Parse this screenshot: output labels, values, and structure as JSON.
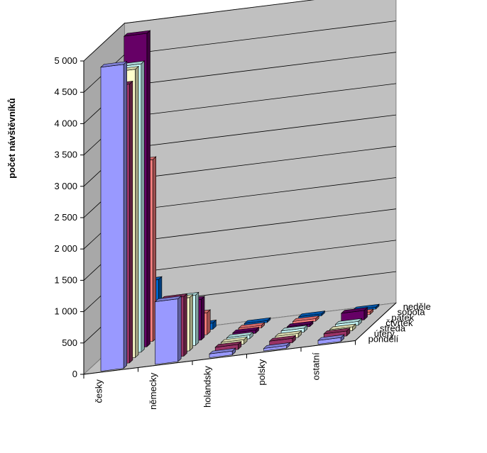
{
  "chart_data": {
    "type": "bar",
    "title": "",
    "ylabel": "počet návštěvníků",
    "ylim": [
      0,
      5000
    ],
    "yticks": [
      "0",
      "500",
      "1 000",
      "1 500",
      "2 000",
      "2 500",
      "3 000",
      "3 500",
      "4 000",
      "4 500",
      "5 000"
    ],
    "categories": [
      "česky",
      "německy",
      "holandsky",
      "polsky",
      "ostatní"
    ],
    "series": [
      {
        "name": "pondělí",
        "color": "#9999ff",
        "values": [
          4850,
          1000,
          60,
          40,
          60
        ]
      },
      {
        "name": "úterý",
        "color": "#993366",
        "values": [
          4450,
          950,
          80,
          70,
          80
        ]
      },
      {
        "name": "středa",
        "color": "#ffffcc",
        "values": [
          4600,
          850,
          70,
          60,
          60
        ]
      },
      {
        "name": "čtvrtek",
        "color": "#ccffff",
        "values": [
          4600,
          800,
          60,
          60,
          60
        ]
      },
      {
        "name": "pátek",
        "color": "#660066",
        "values": [
          5000,
          650,
          50,
          40,
          150
        ]
      },
      {
        "name": "sobota",
        "color": "#ff8080",
        "values": [
          2900,
          350,
          40,
          40,
          40
        ]
      },
      {
        "name": "neděle",
        "color": "#0066cc",
        "values": [
          900,
          100,
          30,
          30,
          30
        ]
      }
    ],
    "grid": true,
    "legend": "depth-axis-right"
  }
}
